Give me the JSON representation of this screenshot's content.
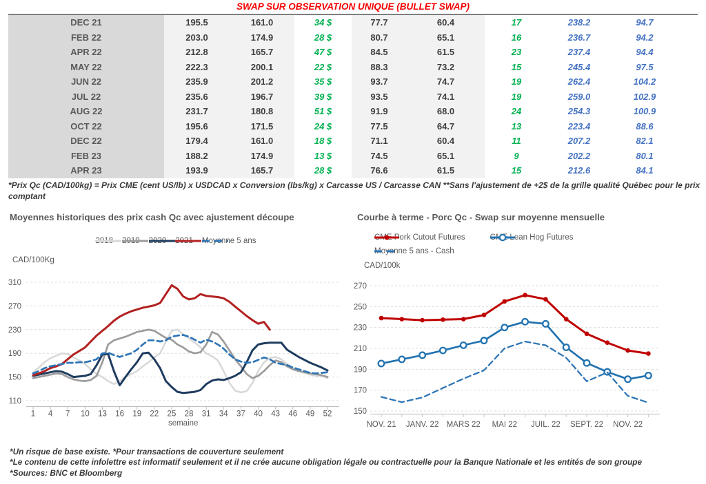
{
  "title": "SWAP SUR OBSERVATION UNIQUE (BULLET SWAP)",
  "table": {
    "rows": [
      [
        "DEC 21",
        "195.5",
        "161.0",
        "34 $",
        "77.7",
        "60.4",
        "17",
        "238.2",
        "94.7"
      ],
      [
        "FEB 22",
        "203.0",
        "174.9",
        "28 $",
        "80.7",
        "65.1",
        "16",
        "236.7",
        "94.2"
      ],
      [
        "APR 22",
        "212.8",
        "165.7",
        "47 $",
        "84.5",
        "61.5",
        "23",
        "237.4",
        "94.4"
      ],
      [
        "MAY 22",
        "222.3",
        "200.1",
        "22 $",
        "88.3",
        "73.2",
        "15",
        "245.4",
        "97.5"
      ],
      [
        "JUN 22",
        "235.9",
        "201.2",
        "35 $",
        "93.7",
        "74.7",
        "19",
        "262.4",
        "104.2"
      ],
      [
        "JUL 22",
        "235.6",
        "196.7",
        "39 $",
        "93.5",
        "74.1",
        "19",
        "259.0",
        "102.9"
      ],
      [
        "AUG 22",
        "231.7",
        "180.8",
        "51 $",
        "91.9",
        "68.0",
        "24",
        "254.3",
        "100.9"
      ],
      [
        "OCT 22",
        "195.6",
        "171.5",
        "24 $",
        "77.5",
        "64.7",
        "13",
        "223.4",
        "88.6"
      ],
      [
        "DEC 22",
        "179.4",
        "161.0",
        "18 $",
        "71.1",
        "60.4",
        "11",
        "207.2",
        "82.1"
      ],
      [
        "FEB 23",
        "188.2",
        "174.9",
        "13 $",
        "74.5",
        "65.1",
        "9",
        "202.2",
        "80.1"
      ],
      [
        "APR 23",
        "193.9",
        "165.7",
        "28 $",
        "76.6",
        "61.5",
        "15",
        "212.6",
        "84.1"
      ]
    ]
  },
  "table_footnote": "*Prix Qc (CAD/100kg) = Prix CME (cent US/lb) x USDCAD x Conversion (lbs/kg) x Carcasse US / Carcasse CAN **Sans l'ajustement de +2$ de la grille qualité Québec pour le prix comptant",
  "colors": {
    "title_red": "#f40000",
    "green_value": "#00b050",
    "blue_value": "#4472c4",
    "month_bg": "#d9d9d9",
    "value_bg": "#f2f2f2"
  },
  "chart_data": [
    {
      "type": "line",
      "title": "Moyennes historiques des prix cash Qc avec ajustement découpe",
      "ylabel": "CAD/100Kg",
      "xlabel": "semaine",
      "ylim": [
        110,
        310
      ],
      "y_ticks": [
        310,
        270,
        230,
        190,
        150,
        110
      ],
      "x_ticks": [
        1,
        4,
        7,
        10,
        13,
        16,
        19,
        22,
        25,
        28,
        31,
        34,
        37,
        40,
        43,
        46,
        49,
        52
      ],
      "grid": true,
      "legend_position": "top",
      "series": [
        {
          "name": "2018",
          "color": "#d8d8d8",
          "dash": false,
          "marker": "none",
          "start_x": 1,
          "values": [
            158,
            166,
            175,
            182,
            186,
            190,
            189,
            183,
            178,
            172,
            163,
            155,
            150,
            143,
            138,
            143,
            150,
            155,
            160,
            168,
            175,
            183,
            190,
            210,
            228,
            230,
            222,
            215,
            208,
            200,
            190,
            185,
            178,
            160,
            140,
            127,
            124,
            126,
            140,
            160,
            175,
            182,
            184,
            180,
            172,
            165,
            160,
            157,
            154,
            152,
            152,
            148
          ]
        },
        {
          "name": "2019",
          "color": "#9c9c9c",
          "dash": false,
          "marker": "none",
          "start_x": 1,
          "values": [
            148,
            150,
            152,
            154,
            156,
            155,
            150,
            146,
            144,
            143,
            145,
            152,
            175,
            205,
            212,
            215,
            218,
            222,
            226,
            228,
            230,
            228,
            222,
            216,
            213,
            205,
            200,
            193,
            190,
            192,
            205,
            226,
            222,
            210,
            195,
            180,
            168,
            155,
            148,
            152,
            160,
            170,
            178,
            175,
            168,
            163,
            160,
            158,
            156,
            155,
            153,
            150
          ]
        },
        {
          "name": "2020",
          "color": "#1f3c5f",
          "dash": false,
          "marker": "none",
          "start_x": 1,
          "values": [
            152,
            154,
            156,
            158,
            160,
            159,
            155,
            150,
            151,
            152,
            155,
            170,
            188,
            189,
            160,
            136,
            150,
            163,
            175,
            190,
            191,
            180,
            165,
            143,
            133,
            125,
            123,
            124,
            125,
            128,
            138,
            144,
            146,
            145,
            148,
            152,
            158,
            175,
            195,
            205,
            207,
            208,
            208,
            208,
            196,
            190,
            184,
            179,
            174,
            170,
            166,
            161
          ]
        },
        {
          "name": "2021",
          "color": "#b32020",
          "dash": false,
          "marker": "none",
          "start_x": 1,
          "values": [
            153,
            156,
            160,
            165,
            168,
            172,
            180,
            188,
            194,
            200,
            210,
            220,
            228,
            236,
            245,
            252,
            257,
            261,
            264,
            267,
            269,
            271,
            275,
            290,
            305,
            299,
            286,
            281,
            283,
            290,
            287,
            286,
            285,
            283,
            277,
            269,
            261,
            253,
            246,
            240,
            243,
            230
          ]
        },
        {
          "name": "Moyenne 5 ans",
          "color": "#2e75b6",
          "dash": true,
          "marker": "none",
          "start_x": 1,
          "values": [
            156,
            160,
            165,
            168,
            170,
            172,
            174,
            174,
            175,
            175,
            177,
            180,
            190,
            191,
            187,
            184,
            187,
            190,
            196,
            205,
            212,
            212,
            210,
            212,
            218,
            220,
            221,
            218,
            213,
            208,
            213,
            210,
            205,
            198,
            188,
            180,
            176,
            174,
            175,
            179,
            183,
            180,
            174,
            172,
            170,
            166,
            163,
            160,
            157,
            156,
            157,
            158
          ]
        }
      ]
    },
    {
      "type": "line",
      "title": "Courbe à terme - Porc Qc - Swap sur moyenne mensuelle",
      "ylabel": "CAD/100k",
      "xlabel": "",
      "ylim": [
        150,
        270
      ],
      "y_ticks": [
        270,
        250,
        230,
        210,
        190,
        170,
        150
      ],
      "x_tick_labels": [
        "NOV. 21",
        "JANV. 22",
        "MARS 22",
        "MAI 22",
        "JUIL. 22",
        "SEPT. 22",
        "NOV. 22"
      ],
      "tick_indices": [
        0,
        2,
        4,
        6,
        8,
        10,
        12
      ],
      "n_points": 14,
      "grid": true,
      "legend_position": "top",
      "series": [
        {
          "name": "CME Pork Cutout Futures",
          "color": "#c00000",
          "dash": false,
          "marker": "filled-circle",
          "values": [
            239,
            238,
            237,
            237.5,
            238,
            242,
            255,
            261,
            257,
            238,
            224,
            215.5,
            208,
            205
          ]
        },
        {
          "name": "CME Lean Hog Futures",
          "color": "#2273b0",
          "dash": false,
          "marker": "open-circle",
          "values": [
            195.5,
            199.5,
            203.5,
            208,
            213,
            217.5,
            230,
            235.5,
            233.5,
            211,
            196,
            187.5,
            180.5,
            184
          ]
        },
        {
          "name": "Moyenne 5 ans - Cash",
          "color": "#2e75b6",
          "dash": true,
          "marker": "none",
          "values": [
            163.5,
            158.5,
            163,
            172,
            181,
            189,
            210,
            216.5,
            213,
            201,
            178.5,
            187,
            164.5,
            158
          ]
        }
      ]
    }
  ],
  "footer_lines": [
    "*Un risque de base existe. *Pour transactions de couverture seulement",
    "*Le contenu de cette infolettre est informatif seulement et il ne crée aucune obligation légale ou contractuelle pour la Banque Nationale et les entités de son groupe",
    "*Sources: BNC et Bloomberg"
  ]
}
